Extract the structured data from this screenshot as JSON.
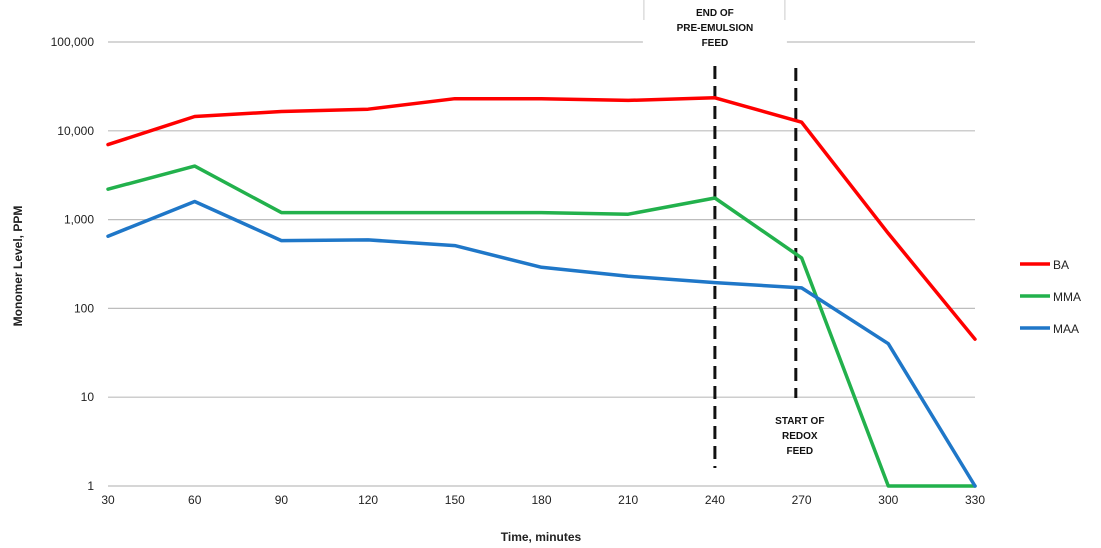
{
  "chart_data": {
    "type": "line",
    "xlabel": "Time, minutes",
    "ylabel": "Monomer Level, PPM",
    "yscale": "log",
    "xlim": [
      30,
      330
    ],
    "ylim": [
      1,
      100000
    ],
    "grid": "horizontal",
    "legend_position": "right",
    "x": [
      30,
      60,
      90,
      120,
      150,
      180,
      210,
      240,
      270,
      300,
      330
    ],
    "x_ticks": [
      "30",
      "60",
      "90",
      "120",
      "150",
      "180",
      "210",
      "240",
      "270",
      "300",
      "330"
    ],
    "y_ticks": [
      {
        "value": 1,
        "label": "1"
      },
      {
        "value": 10,
        "label": "10"
      },
      {
        "value": 100,
        "label": "100"
      },
      {
        "value": 1000,
        "label": "1,000"
      },
      {
        "value": 10000,
        "label": "10,000"
      },
      {
        "value": 100000,
        "label": "100,000"
      }
    ],
    "series": [
      {
        "name": "BA",
        "color": "#ff0000",
        "values": [
          7000,
          14500,
          16500,
          17500,
          23000,
          23000,
          22000,
          23500,
          12500,
          700,
          45
        ]
      },
      {
        "name": "MMA",
        "color": "#22b14c",
        "values": [
          2200,
          4000,
          1200,
          1200,
          1200,
          1200,
          1150,
          1750,
          370,
          1,
          1
        ]
      },
      {
        "name": "MAA",
        "color": "#1f77c8",
        "values": [
          650,
          1600,
          580,
          590,
          510,
          290,
          230,
          195,
          170,
          40,
          1
        ]
      }
    ],
    "annotations": [
      {
        "x": 240,
        "lines": [
          "END OF",
          "PRE-EMULSION",
          "FEED"
        ],
        "position": "top"
      },
      {
        "x": 268,
        "lines": [
          "START OF",
          "REDOX",
          "FEED"
        ],
        "position": "bottom"
      }
    ]
  }
}
